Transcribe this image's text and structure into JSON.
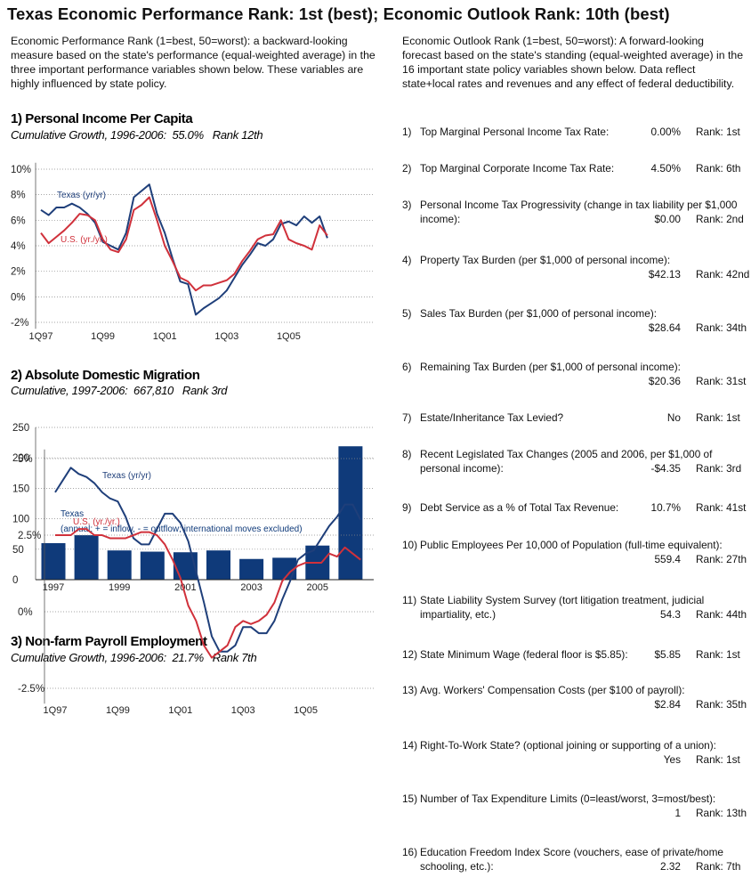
{
  "title": "Texas Economic Performance Rank: 1st (best); Economic Outlook Rank: 10th (best)",
  "performance_intro": "Economic Performance Rank (1=best, 50=worst): a backward-looking measure based on the state's performance (equal-weighted average) in the three important performance variables shown below. These variables are highly influenced by state policy.",
  "outlook_intro": "Economic Outlook Rank (1=best, 50=worst): A forward-looking forecast based on the state's standing (equal-weighted average) in the 16 important state policy variables shown below. Data reflect state+local rates and revenues and any effect of federal deductibility.",
  "outlook_items": [
    {
      "number": "1)",
      "label": "Top Marginal Personal Income Tax Rate:",
      "value": "0.00%",
      "rank": "Rank: 1st"
    },
    {
      "number": "2)",
      "label": "Top Marginal Corporate Income Tax Rate:",
      "value": "4.50%",
      "rank": "Rank: 6th"
    },
    {
      "number": "3)",
      "label": "Personal Income Tax Progressivity (change in tax liability per $1,000 income):",
      "value": "$0.00",
      "rank": "Rank: 2nd"
    },
    {
      "number": "4)",
      "label": "Property Tax Burden (per $1,000 of personal income):",
      "value": "$42.13",
      "rank": "Rank: 42nd"
    },
    {
      "number": "5)",
      "label": "Sales Tax Burden (per $1,000 of personal income):",
      "value": "$28.64",
      "rank": "Rank: 34th"
    },
    {
      "number": "6)",
      "label": "Remaining Tax Burden (per $1,000 of personal income):",
      "value": "$20.36",
      "rank": "Rank: 31st"
    },
    {
      "number": "7)",
      "label": "Estate/Inheritance Tax Levied?",
      "value": "No",
      "rank": "Rank: 1st"
    },
    {
      "number": "8)",
      "label": "Recent Legislated Tax Changes (2005 and 2006, per $1,000 of personal income):",
      "value": "-$4.35",
      "rank": "Rank: 3rd"
    },
    {
      "number": "9)",
      "label": "Debt Service as a % of Total Tax Revenue:",
      "value": "10.7%",
      "rank": "Rank: 41st"
    },
    {
      "number": "10)",
      "label": "Public Employees Per 10,000 of Population (full-time equivalent):",
      "value": "559.4",
      "rank": "Rank: 27th"
    },
    {
      "number": "11)",
      "label": "State Liability System Survey (tort litigation treatment, judicial impartiality, etc.)",
      "value": "54.3",
      "rank": "Rank: 44th"
    },
    {
      "number": "12)",
      "label": "State Minimum Wage (federal floor is $5.85):",
      "value": "$5.85",
      "rank": "Rank: 1st"
    },
    {
      "number": "13)",
      "label": "Avg. Workers' Compensation Costs (per $100 of payroll):",
      "value": "$2.84",
      "rank": "Rank: 35th"
    },
    {
      "number": "14)",
      "label": "Right-To-Work State? (optional joining or supporting of a union):",
      "value": "Yes",
      "rank": "Rank: 1st"
    },
    {
      "number": "15)",
      "label": "Number of Tax Expenditure Limits (0=least/worst, 3=most/best):",
      "value": "1",
      "rank": "Rank: 13th"
    },
    {
      "number": "16)",
      "label": "Education Freedom Index Score (vouchers, ease of private/home schooling, etc.):",
      "value": "2.32",
      "rank": "Rank: 7th"
    }
  ],
  "chart_data": [
    {
      "type": "line",
      "title": "1) Personal Income Per Capita",
      "subtitle": "Cumulative Growth, 1996-2006:  55.0%   Rank 12th",
      "categories": [
        "1Q97",
        null,
        null,
        null,
        null,
        null,
        null,
        null,
        "1Q99",
        null,
        null,
        null,
        null,
        null,
        null,
        null,
        "1Q01",
        null,
        null,
        null,
        null,
        null,
        null,
        null,
        "1Q03",
        null,
        null,
        null,
        null,
        null,
        null,
        null,
        "1Q05",
        null,
        null,
        null,
        null,
        null
      ],
      "series": [
        {
          "name": "Texas (yr/yr)",
          "color": "#1f3f7a",
          "values": [
            6.8,
            6.4,
            7.0,
            7.0,
            7.3,
            7.0,
            6.5,
            5.8,
            4.3,
            4.0,
            3.7,
            5.0,
            7.8,
            8.3,
            8.8,
            6.5,
            5.0,
            3.0,
            1.2,
            1.0,
            -1.4,
            -0.9,
            -0.5,
            -0.1,
            0.5,
            1.5,
            2.5,
            3.3,
            4.2,
            4.0,
            4.5,
            5.7,
            5.9,
            5.6,
            6.3,
            5.8,
            6.3,
            4.6
          ]
        },
        {
          "name": "U.S. (yr./yr.)",
          "color": "#d0313b",
          "values": [
            5.0,
            4.2,
            4.7,
            5.2,
            5.8,
            6.5,
            6.4,
            6.0,
            4.5,
            3.7,
            3.5,
            4.5,
            6.8,
            7.2,
            7.8,
            6.0,
            4.0,
            2.8,
            1.5,
            1.2,
            0.5,
            0.9,
            0.9,
            1.1,
            1.3,
            1.8,
            2.8,
            3.6,
            4.5,
            4.8,
            4.9,
            6.0,
            4.5,
            4.2,
            4.0,
            3.7,
            5.6,
            4.8
          ]
        }
      ],
      "ylim": [
        -2.5,
        10.5
      ],
      "yticks": [
        {
          "value": -2,
          "label": "-2%"
        },
        {
          "value": 0,
          "label": "0%"
        },
        {
          "value": 2,
          "label": "2%"
        },
        {
          "value": 4,
          "label": "4%"
        },
        {
          "value": 6,
          "label": "6%"
        },
        {
          "value": 8,
          "label": "8%"
        },
        {
          "value": 10,
          "label": "10%"
        }
      ],
      "grid": true
    },
    {
      "type": "bar",
      "title": "2) Absolute Domestic Migration",
      "subtitle": "Cumulative, 1997-2006:  667,810   Rank 3rd",
      "categories": [
        "1997",
        null,
        "1999",
        null,
        "2001",
        null,
        "2003",
        null,
        "2005",
        null
      ],
      "series": [
        {
          "name": "Texas",
          "color": "#0f3a7a",
          "values": [
            60,
            73,
            48,
            46,
            45,
            48,
            34,
            36,
            56,
            219
          ]
        }
      ],
      "annotation": "(annual; + = inflow, - = outflow; international moves excluded)",
      "ylim": [
        0,
        250
      ],
      "yticks": [
        0,
        50,
        100,
        150,
        200,
        250
      ],
      "grid": true
    },
    {
      "type": "line",
      "title": "3) Non-farm Payroll Employment",
      "subtitle": "Cumulative Growth, 1996-2006:  21.7%   Rank 7th",
      "categories": [
        "1Q97",
        null,
        null,
        null,
        null,
        null,
        null,
        null,
        "1Q99",
        null,
        null,
        null,
        null,
        null,
        null,
        null,
        "1Q01",
        null,
        null,
        null,
        null,
        null,
        null,
        null,
        "1Q03",
        null,
        null,
        null,
        null,
        null,
        null,
        null,
        "1Q05",
        null,
        null,
        null,
        null,
        null,
        null,
        null
      ],
      "series": [
        {
          "name": "Texas (yr/yr)",
          "color": "#1f3f7a",
          "values": [
            3.9,
            4.3,
            4.7,
            4.5,
            4.4,
            4.2,
            3.9,
            3.7,
            3.6,
            3.1,
            2.4,
            2.2,
            2.2,
            2.7,
            3.2,
            3.2,
            2.9,
            2.3,
            1.3,
            0.3,
            -0.8,
            -1.3,
            -1.3,
            -1.1,
            -0.5,
            -0.5,
            -0.7,
            -0.7,
            -0.3,
            0.4,
            1.0,
            1.7,
            1.9,
            2.0,
            2.4,
            2.8,
            3.1,
            3.5,
            3.5,
            3.0
          ]
        },
        {
          "name": "U.S. (yr./yr.)",
          "color": "#d0313b",
          "values": [
            2.5,
            2.5,
            2.5,
            2.7,
            2.7,
            2.5,
            2.5,
            2.4,
            2.4,
            2.4,
            2.5,
            2.6,
            2.6,
            2.5,
            2.2,
            1.7,
            1.1,
            0.2,
            -0.3,
            -1.1,
            -1.5,
            -1.3,
            -1.1,
            -0.5,
            -0.3,
            -0.4,
            -0.3,
            -0.1,
            0.3,
            1.0,
            1.3,
            1.5,
            1.6,
            1.6,
            1.6,
            1.9,
            1.8,
            2.1,
            1.9,
            1.7
          ]
        }
      ],
      "ylim": [
        -3,
        5.3
      ],
      "yticks": [
        {
          "value": -2.5,
          "label": "-2.5%"
        },
        {
          "value": 0,
          "label": "0%"
        },
        {
          "value": 2.5,
          "label": "2.5%"
        },
        {
          "value": 5,
          "label": "5%"
        }
      ],
      "grid": true
    }
  ]
}
